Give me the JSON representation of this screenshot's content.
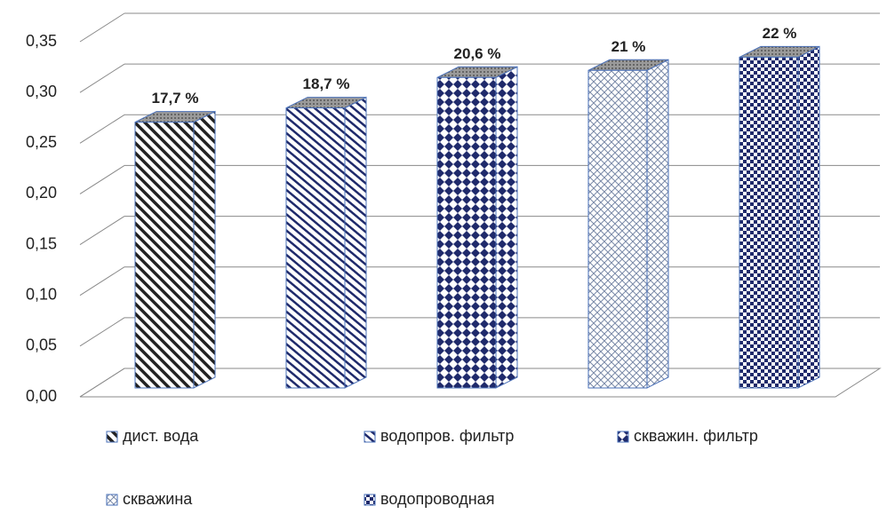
{
  "chart_data": {
    "type": "bar",
    "categories": [
      "дист. вода",
      "водопров. фильтр",
      "скважин. фильтр",
      "скважина",
      "водопроводная"
    ],
    "values": [
      0.262,
      0.276,
      0.306,
      0.313,
      0.326
    ],
    "annotations": [
      "17,7 %",
      "18,7 %",
      "20,6 %",
      "21 %",
      "22 %"
    ],
    "color": "#1f2a6b",
    "ylim": [
      0,
      0.35
    ],
    "yticks": [
      {
        "value": 0,
        "label": "0,00"
      },
      {
        "value": 0.05,
        "label": "0,05"
      },
      {
        "value": 0.1,
        "label": "0,10"
      },
      {
        "value": 0.15,
        "label": "0,15"
      },
      {
        "value": 0.2,
        "label": "0,20"
      },
      {
        "value": 0.25,
        "label": "0,25"
      },
      {
        "value": 0.3,
        "label": "0,30"
      },
      {
        "value": 0.35,
        "label": "0,35"
      }
    ],
    "grid": true
  }
}
